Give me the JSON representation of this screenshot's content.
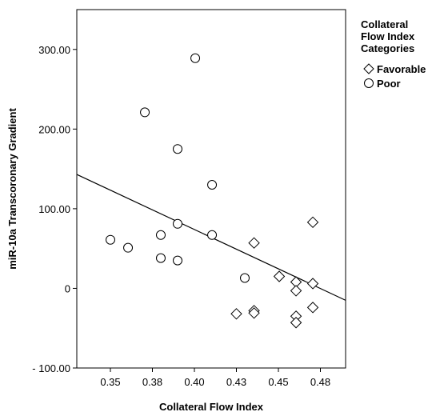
{
  "chart_data": {
    "type": "scatter",
    "xlabel": "Collateral Flow Index",
    "ylabel": "miR-10a Transcoronary Gradient",
    "xlim": [
      0.33,
      0.49
    ],
    "ylim": [
      -100,
      350
    ],
    "x_ticks": [
      0.35,
      0.375,
      0.4,
      0.425,
      0.45,
      0.475
    ],
    "x_tick_labels": [
      "0.35",
      "0.38",
      "0.40",
      "0.43",
      "0.45",
      "0.48"
    ],
    "y_ticks": [
      -100,
      0,
      100,
      200,
      300
    ],
    "y_tick_labels": [
      "- 100.00",
      "0",
      "100.00",
      "200.00",
      "300.00"
    ],
    "legend": {
      "title_lines": [
        "Collateral",
        "Flow Index",
        "Categories"
      ],
      "entries": [
        "Favorable",
        "Poor"
      ],
      "placement": "right"
    },
    "series": [
      {
        "name": "Favorable",
        "marker": "diamond",
        "points": [
          [
            0.425,
            -32
          ],
          [
            0.4355,
            -28
          ],
          [
            0.4355,
            -31
          ],
          [
            0.4355,
            57
          ],
          [
            0.4505,
            15
          ],
          [
            0.4605,
            8
          ],
          [
            0.4605,
            -3
          ],
          [
            0.4605,
            -35
          ],
          [
            0.4605,
            -43
          ],
          [
            0.4705,
            83
          ],
          [
            0.4705,
            6
          ],
          [
            0.4705,
            -24
          ]
        ]
      },
      {
        "name": "Poor",
        "marker": "circle",
        "points": [
          [
            0.35,
            61
          ],
          [
            0.3605,
            51
          ],
          [
            0.3705,
            221
          ],
          [
            0.38,
            67
          ],
          [
            0.38,
            38
          ],
          [
            0.39,
            81
          ],
          [
            0.39,
            35
          ],
          [
            0.39,
            175
          ],
          [
            0.4005,
            289
          ],
          [
            0.4105,
            130
          ],
          [
            0.4105,
            67
          ],
          [
            0.43,
            13
          ]
        ]
      }
    ],
    "fit_line": {
      "x": [
        0.33,
        0.49
      ],
      "y": [
        143,
        -15
      ]
    },
    "grid": false
  }
}
